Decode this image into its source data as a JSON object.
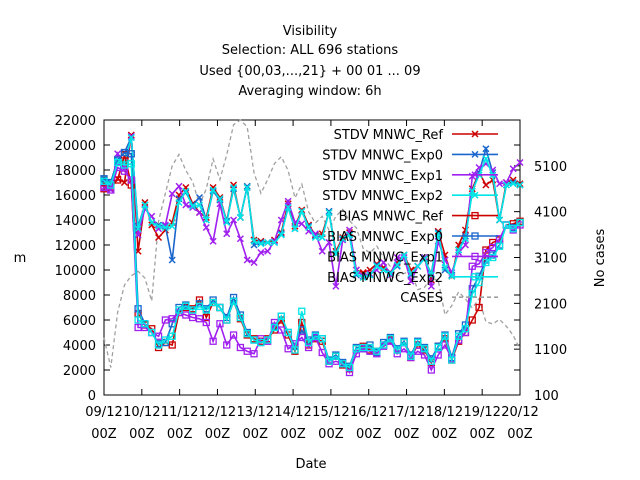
{
  "chart_data": {
    "type": "line",
    "title_lines": [
      "Visibility",
      "Selection: ALL    696 stations",
      "Used {00,03,...,21} + 00 01 ... 09",
      "Averaging window:  6h"
    ],
    "xlabel": "Date",
    "ylabel": "m",
    "y2label": "No cases",
    "ylim": [
      0,
      22000
    ],
    "y_ticks": [
      0,
      2000,
      4000,
      6000,
      8000,
      10000,
      12000,
      14000,
      16000,
      18000,
      20000,
      22000
    ],
    "y2lim": [
      100,
      6100
    ],
    "y2_ticks": [
      100,
      1100,
      2100,
      3100,
      4100,
      5100
    ],
    "x_ticks": [
      "09/12\n00Z",
      "10/12\n00Z",
      "11/12\n00Z",
      "12/12\n00Z",
      "13/12\n00Z",
      "14/12\n00Z",
      "15/12\n00Z",
      "16/12\n00Z",
      "17/12\n00Z",
      "18/12\n00Z",
      "19/12\n00Z",
      "20/12\n00Z"
    ],
    "x_range_days": [
      0,
      11
    ],
    "grid": false,
    "legend_position": "top-right",
    "series": [
      {
        "name": "STDV MNWC_Ref",
        "color": "#cc0000",
        "marker": "x",
        "values": [
          17000,
          16500,
          17300,
          17000,
          20800,
          11500,
          15400,
          13600,
          12600,
          13200,
          13800,
          16000,
          16600,
          15300,
          14600,
          14200,
          16600,
          15800,
          13900,
          16800,
          14200,
          16600,
          12400,
          12300,
          12200,
          12400,
          13000,
          15300,
          13500,
          14800,
          13600,
          12800,
          12900,
          14600,
          11500,
          12600,
          13000,
          10000,
          9800,
          10000,
          10500,
          10200,
          9800,
          10600,
          11200,
          10000,
          10300,
          11000,
          9200,
          13100,
          11200,
          9500,
          12000,
          13200,
          16500,
          17800,
          16800,
          17200,
          14000,
          17000,
          17200,
          16900
        ]
      },
      {
        "name": "STDV MNWC_Exp0",
        "color": "#1a66cc",
        "marker": "x",
        "values": [
          17300,
          17000,
          18800,
          19400,
          20600,
          13500,
          15200,
          13800,
          13600,
          13500,
          10800,
          15700,
          16200,
          15200,
          15800,
          14000,
          16300,
          15600,
          13900,
          16500,
          14200,
          16700,
          12000,
          12200,
          12200,
          12200,
          12900,
          15000,
          13300,
          14700,
          13500,
          12700,
          12600,
          14700,
          11300,
          12500,
          12800,
          9600,
          9500,
          9600,
          10400,
          10000,
          9800,
          10300,
          11200,
          9600,
          10300,
          10900,
          9700,
          13000,
          10000,
          9600,
          11600,
          12700,
          16300,
          17800,
          19700,
          17800,
          14000,
          16800,
          17000,
          16800
        ]
      },
      {
        "name": "STDV MNWC_Exp1",
        "color": "#a020f0",
        "marker": "x",
        "values": [
          16600,
          16400,
          19300,
          18100,
          20700,
          12800,
          14900,
          14300,
          13300,
          13600,
          16100,
          16700,
          15200,
          15000,
          14600,
          13400,
          12300,
          15300,
          12900,
          14000,
          12500,
          10800,
          10600,
          11400,
          11500,
          12300,
          14000,
          15500,
          13800,
          13700,
          13100,
          12900,
          11500,
          12200,
          8700,
          12400,
          13200,
          10000,
          9500,
          9700,
          10000,
          10600,
          9600,
          11000,
          11000,
          9100,
          10300,
          11000,
          8700,
          12300,
          10800,
          9800,
          11400,
          12000,
          17500,
          18200,
          18500,
          18000,
          16900,
          17000,
          18100,
          18600
        ]
      },
      {
        "name": "STDV MNWC_Exp2",
        "color": "#00e5e5",
        "marker": "x",
        "values": [
          17100,
          16800,
          18800,
          18600,
          20600,
          13300,
          15200,
          13800,
          13500,
          13400,
          13500,
          15400,
          16300,
          15100,
          15200,
          14000,
          16400,
          15700,
          13800,
          16600,
          14200,
          16600,
          12300,
          12100,
          12200,
          12200,
          12800,
          15000,
          13300,
          14700,
          13400,
          12600,
          12600,
          14600,
          11300,
          12500,
          12800,
          9700,
          9400,
          9600,
          10300,
          10000,
          9700,
          10400,
          11200,
          9700,
          10300,
          10900,
          9600,
          12900,
          10200,
          9500,
          11600,
          12500,
          16300,
          17600,
          18900,
          17600,
          14000,
          16800,
          16900,
          16800
        ]
      },
      {
        "name": "BIAS MNWC_Ref",
        "color": "#cc0000",
        "marker": "square",
        "values": [
          16500,
          16800,
          17200,
          19200,
          16800,
          6500,
          5600,
          5300,
          3800,
          4200,
          4000,
          6600,
          7000,
          6900,
          7600,
          6200,
          7400,
          7000,
          6000,
          7500,
          6100,
          4800,
          4500,
          4300,
          4500,
          5200,
          6000,
          4800,
          3500,
          5800,
          4000,
          4500,
          4300,
          2700,
          3100,
          2400,
          2100,
          3700,
          3900,
          3600,
          3500,
          4000,
          4400,
          3600,
          4200,
          3000,
          4000,
          3600,
          2600,
          3900,
          4500,
          2800,
          4300,
          5000,
          6000,
          7000,
          11600,
          12200,
          12400,
          13600,
          13700,
          13900
        ]
      },
      {
        "name": "BIAS MNWC_Exp0",
        "color": "#1a66cc",
        "marker": "square",
        "values": [
          17300,
          17000,
          18800,
          19400,
          19300,
          6900,
          5700,
          5000,
          4100,
          4200,
          5700,
          7000,
          7200,
          6800,
          7300,
          6900,
          7600,
          7000,
          6200,
          7800,
          6400,
          5000,
          4400,
          4200,
          4400,
          5500,
          6300,
          5000,
          3900,
          5200,
          4400,
          4800,
          4500,
          2800,
          3200,
          2600,
          2300,
          3800,
          3700,
          4000,
          3400,
          4200,
          4600,
          3700,
          4300,
          3200,
          4300,
          3800,
          2900,
          3900,
          4800,
          3000,
          4900,
          5600,
          8500,
          9500,
          10800,
          11200,
          12000,
          13600,
          13400,
          13800
        ]
      },
      {
        "name": "BIAS MNWC_Exp1",
        "color": "#a020f0",
        "marker": "square",
        "values": [
          16600,
          16400,
          18200,
          17900,
          17200,
          5400,
          5400,
          5000,
          4700,
          6000,
          6100,
          6600,
          6400,
          6200,
          6100,
          5800,
          4300,
          5700,
          4000,
          4800,
          3800,
          3500,
          3300,
          4500,
          4300,
          5800,
          5200,
          3700,
          4100,
          4600,
          3800,
          4600,
          3400,
          2500,
          2700,
          2500,
          1800,
          3300,
          3700,
          3500,
          3300,
          3900,
          4300,
          3300,
          3700,
          3000,
          3500,
          3200,
          2000,
          3200,
          4000,
          2900,
          4400,
          5000,
          10300,
          10500,
          11400,
          11800,
          12500,
          13600,
          13200,
          13600
        ]
      },
      {
        "name": "BIAS MNWC_Exp2",
        "color": "#00e5e5",
        "marker": "square",
        "values": [
          17100,
          16800,
          18600,
          18400,
          18500,
          6000,
          5700,
          5000,
          4000,
          4400,
          4700,
          6800,
          7100,
          6800,
          7100,
          6800,
          7400,
          7000,
          6000,
          7500,
          6200,
          4900,
          4400,
          4200,
          4400,
          5400,
          6300,
          5000,
          3600,
          6700,
          4200,
          4700,
          4500,
          2700,
          3100,
          2500,
          2200,
          3700,
          3800,
          3800,
          3500,
          4000,
          4500,
          3600,
          4200,
          3100,
          4200,
          3700,
          2700,
          3800,
          4700,
          2800,
          4700,
          5300,
          8100,
          9000,
          10600,
          11000,
          11900,
          13600,
          13300,
          13800
        ]
      }
    ],
    "cases": {
      "name": "CASES",
      "color": "#a0a0a0",
      "values": [
        1350,
        700,
        1900,
        2500,
        2700,
        2800,
        2650,
        2150,
        3900,
        4500,
        5100,
        5350,
        5000,
        4750,
        4250,
        4600,
        5250,
        4800,
        5350,
        6000,
        6100,
        5950,
        4950,
        4500,
        4800,
        5150,
        5300,
        5000,
        4400,
        4700,
        4100,
        3850,
        4000,
        3700,
        4000,
        4150,
        3900,
        3750,
        3300,
        3200,
        3350,
        3100,
        2900,
        2700,
        2750,
        2800,
        2400,
        2450,
        2650,
        2600,
        1850,
        2050,
        2350,
        2200,
        2000,
        2200,
        1700,
        1650,
        1750,
        1600,
        1400,
        1100
      ]
    }
  }
}
